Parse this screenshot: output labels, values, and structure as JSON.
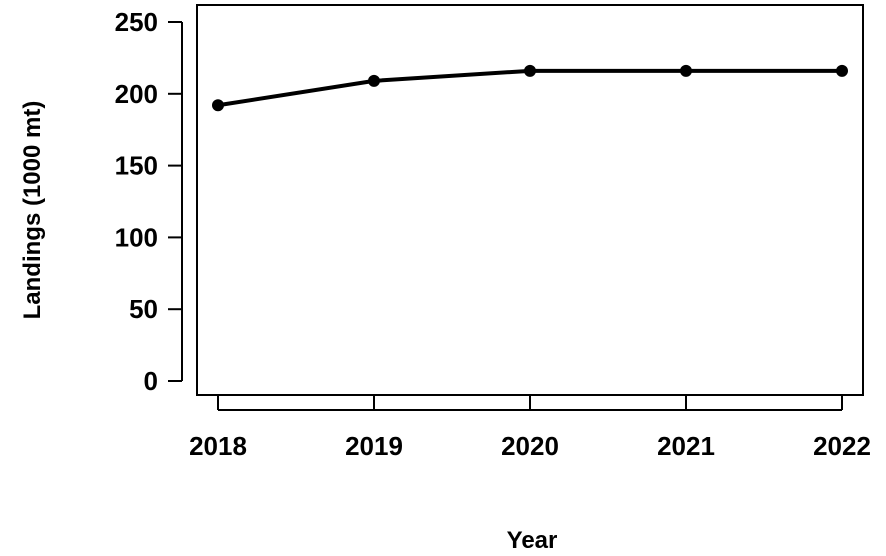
{
  "chart_data": {
    "type": "line",
    "title": "",
    "xlabel": "Year",
    "ylabel": "Landings (1000 mt)",
    "categories": [
      "2018",
      "2019",
      "2020",
      "2021",
      "2022"
    ],
    "series": [
      {
        "values": [
          192,
          209,
          216,
          216,
          216
        ]
      }
    ],
    "yticks": [
      0,
      50,
      100,
      150,
      200,
      250
    ],
    "ylim": [
      -10,
      255
    ],
    "grid": false,
    "legend": "none",
    "colors": {
      "line": "#000000",
      "marker": "#000000",
      "frame": "#000000"
    }
  }
}
